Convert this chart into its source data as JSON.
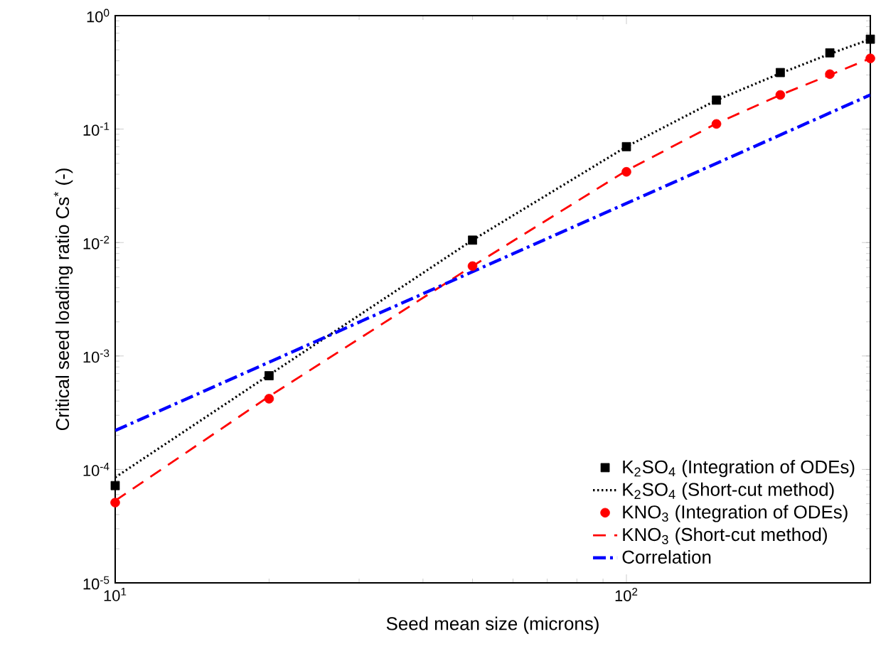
{
  "chart_data": {
    "type": "line",
    "xlabel": "Seed mean size (microns)",
    "ylabel": "Critical seed loading ratio Cs$^{*}$ (-)",
    "log": "xy",
    "legend": "bottom right",
    "grid": false,
    "xlim": [
      10,
      300
    ],
    "ylim": [
      1e-05,
      1
    ],
    "xticks": [
      {
        "value": 10,
        "label": "10$^{1}$"
      },
      {
        "value": 100,
        "label": "10$^{2}$"
      }
    ],
    "yticks": [
      {
        "value": 1e-05,
        "label": "10$^{-5}$"
      },
      {
        "value": 0.0001,
        "label": "10$^{-4}$"
      },
      {
        "value": 0.001,
        "label": "10$^{-3}$"
      },
      {
        "value": 0.01,
        "label": "10$^{-2}$"
      },
      {
        "value": 0.1,
        "label": "10$^{-1}$"
      },
      {
        "value": 1,
        "label": "10$^{0}$"
      }
    ],
    "series": [
      {
        "name": "K$_{2}$SO$_{4}$ (Integration of ODEs)",
        "type": "scatter",
        "marker": "square",
        "color": "#000000",
        "x": [
          10,
          20,
          50,
          100,
          150,
          200,
          250,
          300
        ],
        "values": [
          7.2e-05,
          0.00067,
          0.0105,
          0.07,
          0.18,
          0.315,
          0.47,
          0.62
        ]
      },
      {
        "name": "K$_{2}$SO$_{4}$ (Short-cut method)",
        "line_style": "dotted",
        "color": "#000000",
        "x": [
          10,
          20,
          50,
          100,
          150,
          200,
          250,
          300
        ],
        "values": [
          8.5e-05,
          0.00068,
          0.0105,
          0.07,
          0.18,
          0.31,
          0.46,
          0.62
        ]
      },
      {
        "name": "KNO$_{3}$ (Integration of ODEs)",
        "type": "scatter",
        "marker": "circle",
        "color": "#ff0000",
        "x": [
          10,
          20,
          50,
          100,
          150,
          200,
          250,
          300
        ],
        "values": [
          5.1e-05,
          0.00042,
          0.0062,
          0.042,
          0.111,
          0.2,
          0.305,
          0.42
        ]
      },
      {
        "name": "KNO$_{3}$ (Short-cut method)",
        "line_style": "dashed",
        "color": "#ff0000",
        "x": [
          10,
          20,
          50,
          100,
          150,
          200,
          250,
          300
        ],
        "values": [
          5.3e-05,
          0.00044,
          0.0062,
          0.043,
          0.112,
          0.2,
          0.3,
          0.42
        ]
      },
      {
        "name": "Correlation",
        "line_style": "dashdot",
        "color": "#0000ff",
        "x": [
          10,
          300
        ],
        "values": [
          0.00022,
          0.2
        ]
      }
    ]
  }
}
